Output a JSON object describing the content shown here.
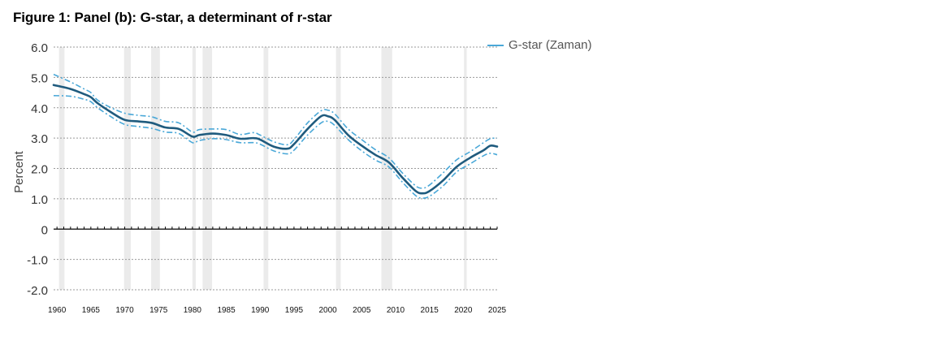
{
  "title": "Figure 1: Panel (b): G-star, a determinant of r-star",
  "chart_data": {
    "type": "line",
    "title": "Figure 1: Panel (b): G-star, a determinant of r-star",
    "ylabel": "Percent",
    "xlabel": "",
    "xlim": [
      1959.5,
      2025
    ],
    "ylim": [
      -2.0,
      6.0
    ],
    "y_ticks": [
      6.0,
      5.0,
      4.0,
      3.0,
      2.0,
      1.0,
      0,
      -1.0,
      -2.0
    ],
    "y_tick_labels": [
      "6.0",
      "5.0",
      "4.0",
      "3.0",
      "2.0",
      "1.0",
      "0",
      "-1.0",
      "-2.0"
    ],
    "x_ticks": [
      1960,
      1965,
      1970,
      1975,
      1980,
      1985,
      1990,
      1995,
      2000,
      2005,
      2010,
      2015,
      2020,
      2025
    ],
    "x_tick_labels": [
      "1960",
      "1965",
      "1970",
      "1975",
      "1980",
      "1985",
      "1990",
      "1995",
      "2000",
      "2005",
      "2010",
      "2015",
      "2020",
      "2025"
    ],
    "grid": true,
    "legend_position": "top-right",
    "colors": {
      "main": "#1f5b7e",
      "band": "#4aa8d8",
      "recession": "#ebebeb",
      "grid": "#999999"
    },
    "recessions": [
      [
        1960.3,
        1961.1
      ],
      [
        1969.9,
        1970.9
      ],
      [
        1973.9,
        1975.2
      ],
      [
        1980.0,
        1980.5
      ],
      [
        1981.5,
        1982.9
      ],
      [
        1990.5,
        1991.2
      ],
      [
        2001.2,
        2001.9
      ],
      [
        2007.9,
        2009.5
      ],
      [
        2020.1,
        2020.5
      ]
    ],
    "series": [
      {
        "name": "G-star (Zaman)",
        "role": "estimate",
        "x": [
          1959.5,
          1962,
          1964,
          1965,
          1966,
          1968,
          1970,
          1972,
          1974,
          1976,
          1978,
          1980,
          1981,
          1983,
          1985,
          1987,
          1989,
          1990,
          1992,
          1994,
          1995,
          1997,
          1999,
          2000,
          2001,
          2003,
          2005,
          2007,
          2009,
          2011,
          2013,
          2014,
          2015,
          2017,
          2019,
          2021,
          2023,
          2024,
          2025
        ],
        "y": [
          4.75,
          4.62,
          4.45,
          4.35,
          4.15,
          3.85,
          3.6,
          3.55,
          3.5,
          3.35,
          3.3,
          3.05,
          3.1,
          3.15,
          3.1,
          2.98,
          3.0,
          2.95,
          2.72,
          2.65,
          2.8,
          3.3,
          3.72,
          3.72,
          3.6,
          3.1,
          2.75,
          2.45,
          2.2,
          1.7,
          1.25,
          1.18,
          1.25,
          1.6,
          2.05,
          2.35,
          2.6,
          2.75,
          2.72
        ]
      },
      {
        "role": "upper_band",
        "x": [
          1959.5,
          1962,
          1964,
          1965,
          1966,
          1968,
          1970,
          1972,
          1974,
          1976,
          1978,
          1980,
          1981,
          1983,
          1985,
          1987,
          1989,
          1990,
          1992,
          1994,
          1995,
          1997,
          1999,
          2000,
          2001,
          2003,
          2005,
          2007,
          2009,
          2011,
          2013,
          2014,
          2015,
          2017,
          2019,
          2021,
          2023,
          2024,
          2025
        ],
        "y": [
          5.1,
          4.85,
          4.62,
          4.5,
          4.25,
          4.0,
          3.82,
          3.75,
          3.7,
          3.55,
          3.5,
          3.2,
          3.28,
          3.3,
          3.28,
          3.12,
          3.18,
          3.1,
          2.88,
          2.78,
          2.95,
          3.5,
          3.9,
          3.92,
          3.8,
          3.3,
          2.95,
          2.62,
          2.35,
          1.85,
          1.42,
          1.35,
          1.45,
          1.85,
          2.28,
          2.55,
          2.85,
          2.98,
          3.0
        ]
      },
      {
        "role": "lower_band",
        "x": [
          1959.5,
          1962,
          1964,
          1965,
          1966,
          1968,
          1970,
          1972,
          1974,
          1976,
          1978,
          1980,
          1981,
          1983,
          1985,
          1987,
          1989,
          1990,
          1992,
          1994,
          1995,
          1997,
          1999,
          2000,
          2001,
          2003,
          2005,
          2007,
          2009,
          2011,
          2013,
          2014,
          2015,
          2017,
          2019,
          2021,
          2023,
          2024,
          2025
        ],
        "y": [
          4.4,
          4.38,
          4.28,
          4.2,
          4.0,
          3.7,
          3.45,
          3.38,
          3.32,
          3.2,
          3.15,
          2.85,
          2.92,
          2.98,
          2.95,
          2.85,
          2.85,
          2.8,
          2.58,
          2.48,
          2.6,
          3.1,
          3.5,
          3.55,
          3.42,
          2.95,
          2.58,
          2.28,
          2.05,
          1.55,
          1.1,
          1.02,
          1.08,
          1.42,
          1.88,
          2.15,
          2.42,
          2.5,
          2.45
        ]
      }
    ]
  }
}
